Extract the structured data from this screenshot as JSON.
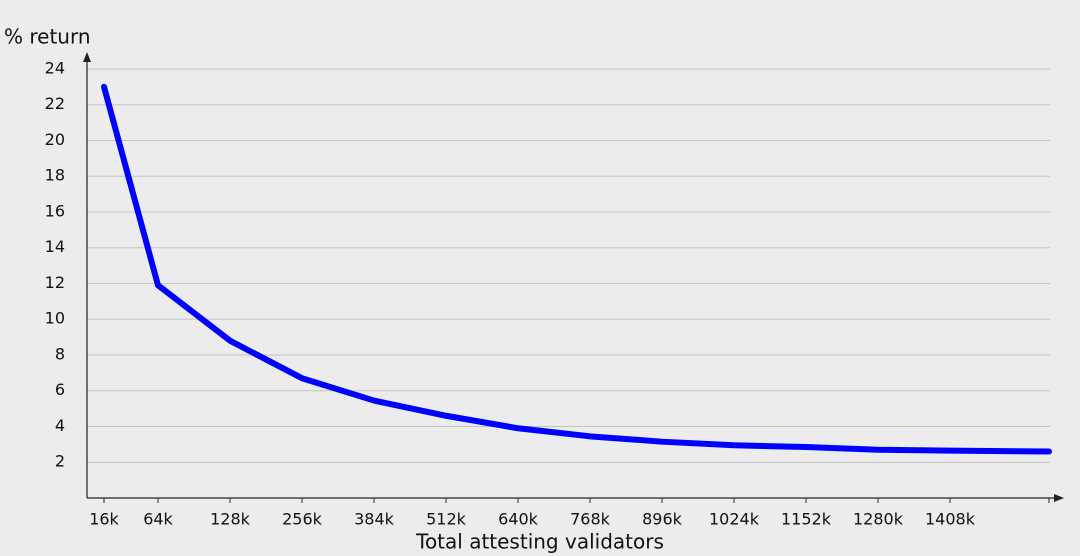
{
  "chart_data": {
    "type": "line",
    "y_axis_label": "% return",
    "x_axis_label": "Total attesting validators",
    "categories": [
      "16k",
      "64k",
      "128k",
      "256k",
      "384k",
      "512k",
      "640k",
      "768k",
      "896k",
      "1024k",
      "1152k",
      "1280k",
      "1408k",
      null
    ],
    "series": [
      {
        "name": "% return",
        "color": "#0000ff",
        "values": [
          23,
          11.9,
          8.8,
          6.7,
          5.45,
          4.6,
          3.9,
          3.45,
          3.15,
          2.95,
          2.85,
          2.7,
          2.65,
          2.6
        ]
      }
    ],
    "ylim": [
      0,
      24.5
    ],
    "yticks": [
      2,
      4,
      6,
      8,
      10,
      12,
      14,
      16,
      18,
      20,
      22,
      24
    ],
    "grid": true
  }
}
